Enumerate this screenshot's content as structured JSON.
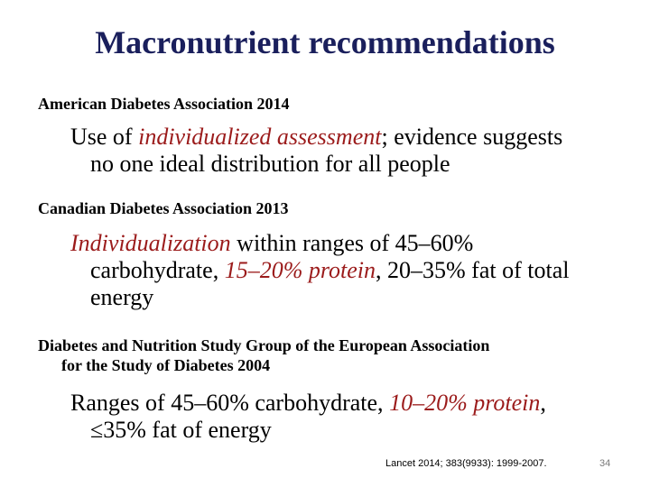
{
  "title": "Macronutrient recommendations",
  "sections": [
    {
      "heading": "American Diabetes Association 2014",
      "line1_a": "Use of ",
      "line1_hl": "individualized assessment",
      "line1_b": "; evidence suggests",
      "line2": "no one ideal distribution for all people"
    },
    {
      "heading": "Canadian Diabetes Association 2013",
      "line1_hl": "Individualization",
      "line1_b": " within ranges of 45–60%",
      "line2_a": "carbohydrate, ",
      "line2_hl": "15–20% protein",
      "line2_b": ", 20–35% fat of total",
      "line3": "energy"
    },
    {
      "heading_line1": "Diabetes and Nutrition Study Group of the European Association",
      "heading_line2": "for the Study of Diabetes 2004",
      "line1_a": "Ranges of 45–60% carbohydrate, ",
      "line1_hl": "10–20% protein",
      "line1_b": ",",
      "line2": "≤35% fat of energy"
    }
  ],
  "citation": "Lancet 2014; 383(9933): 1999-2007.",
  "page_number": "34",
  "colors": {
    "title": "#1a1f5c",
    "highlight": "#9b1b1b"
  }
}
